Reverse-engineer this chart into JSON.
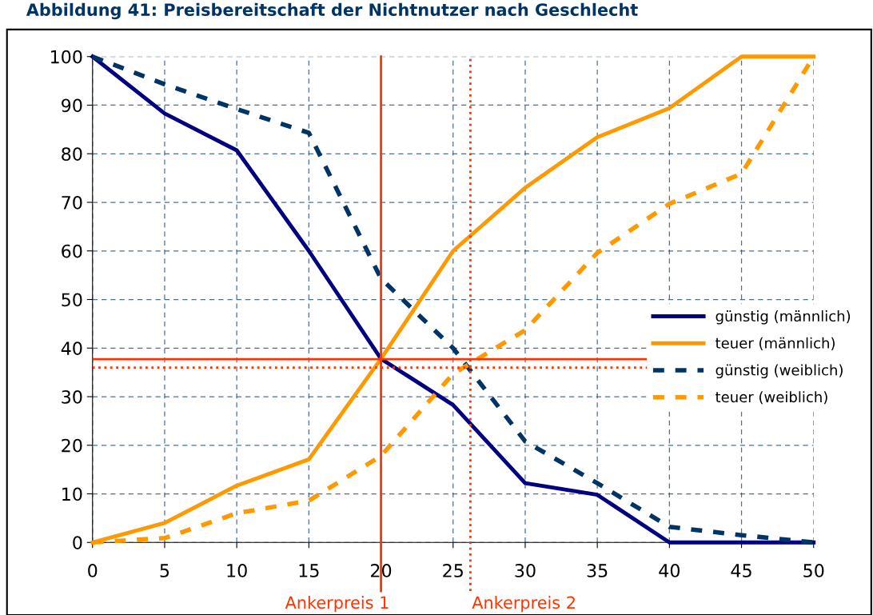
{
  "chart_data": {
    "type": "line",
    "title": "Abbildung 41: Preisbereitschaft der Nichtnutzer nach Geschlecht",
    "x": [
      0,
      5,
      10,
      15,
      20,
      25,
      30,
      35,
      40,
      45,
      50
    ],
    "xlim": [
      0,
      50
    ],
    "xticks": [
      0,
      5,
      10,
      15,
      20,
      25,
      30,
      35,
      40,
      45,
      50
    ],
    "ylim": [
      0,
      100
    ],
    "yticks": [
      0,
      10,
      20,
      30,
      40,
      50,
      60,
      70,
      80,
      90,
      100
    ],
    "grid": true,
    "legend": "right",
    "marker": "none",
    "series": [
      {
        "name": "günstig (männlich)",
        "color": "#000080",
        "line_style": "solid",
        "values": [
          100,
          88.3,
          80.7,
          60.0,
          37.8,
          28.3,
          12.2,
          9.8,
          0,
          0,
          0
        ]
      },
      {
        "name": "teuer (männlich)",
        "color": "#ff9900",
        "line_style": "solid",
        "values": [
          0,
          4.0,
          11.7,
          17.1,
          37.8,
          60.0,
          73.0,
          83.4,
          89.4,
          100,
          100
        ]
      },
      {
        "name": "günstig (weiblich)",
        "color": "#003366",
        "line_style": "dashed",
        "values": [
          100,
          94.3,
          89.2,
          84.3,
          54.3,
          40.0,
          20.8,
          12.2,
          3.2,
          1.5,
          0
        ]
      },
      {
        "name": "teuer (weiblich)",
        "color": "#ff9900",
        "line_style": "dashed",
        "values": [
          0,
          0.9,
          6.0,
          8.6,
          17.8,
          34.7,
          43.7,
          59.6,
          69.7,
          75.9,
          100
        ]
      }
    ],
    "ref_lines": [
      {
        "axis": "x",
        "value": 20,
        "label": "Ankerpreis 1",
        "color": "#ff3300",
        "line_style": "solid"
      },
      {
        "axis": "x",
        "value": 26.2,
        "label": "Ankerpreis 2",
        "color": "#ff3300",
        "line_style": "dotted"
      },
      {
        "axis": "y",
        "value": 37.7,
        "color": "#ff3300",
        "line_style": "solid"
      },
      {
        "axis": "y",
        "value": 36,
        "color": "#ff3300",
        "line_style": "dotted"
      }
    ]
  }
}
